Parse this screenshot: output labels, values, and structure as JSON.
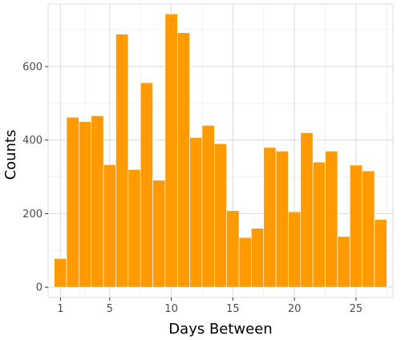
{
  "chart_data": {
    "type": "bar",
    "xlabel": "Days Between",
    "ylabel": "Counts",
    "x": [
      1,
      2,
      3,
      4,
      5,
      6,
      7,
      8,
      9,
      10,
      11,
      12,
      13,
      14,
      15,
      16,
      17,
      18,
      19,
      20,
      21,
      22,
      23,
      24,
      25,
      26,
      27
    ],
    "values": [
      78,
      462,
      450,
      466,
      333,
      688,
      320,
      556,
      291,
      743,
      692,
      407,
      440,
      390,
      208,
      135,
      160,
      380,
      370,
      205,
      420,
      340,
      370,
      138,
      332,
      316,
      184
    ],
    "xlim": [
      0,
      28
    ],
    "ylim": [
      -28,
      770
    ],
    "xticks": [
      1,
      5,
      10,
      15,
      20,
      25
    ],
    "yticks": [
      0,
      200,
      400,
      600
    ],
    "xtick_labels": [
      "1",
      "5",
      "10",
      "15",
      "20",
      "25"
    ],
    "ytick_labels": [
      "0",
      "200",
      "400",
      "600"
    ],
    "bar_color": "#FF9B00",
    "panel_background": "#FFFFFF",
    "grid_color": "#DDDDDD",
    "grid": true,
    "legend": "none"
  }
}
